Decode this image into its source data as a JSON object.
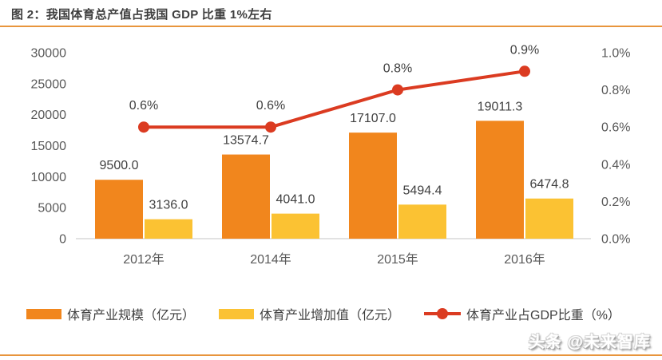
{
  "figure": {
    "title": "图 2：我国体育总产值占我国 GDP 比重 1%左右",
    "watermark": "头条 @未来智库",
    "accent_color": "#e8953c"
  },
  "chart_data": {
    "type": "bar",
    "subtype": "combo-bar-line",
    "title": "图 2：我国体育总产值占我国 GDP 比重 1%左右",
    "categories": [
      "2012年",
      "2014年",
      "2015年",
      "2016年"
    ],
    "series": [
      {
        "name": "体育产业规模（亿元）",
        "type": "bar",
        "axis": "left",
        "color": "#f1861d",
        "values": [
          9500.0,
          13574.7,
          17107.0,
          19011.3
        ],
        "labels": [
          "9500.0",
          "13574.7",
          "17107.0",
          "19011.3"
        ]
      },
      {
        "name": "体育产业增加值（亿元）",
        "type": "bar",
        "axis": "left",
        "color": "#fbc233",
        "values": [
          3136.0,
          4041.0,
          5494.4,
          6474.8
        ],
        "labels": [
          "3136.0",
          "4041.0",
          "5494.4",
          "6474.8"
        ]
      },
      {
        "name": "体育产业占GDP比重（%）",
        "type": "line",
        "axis": "right",
        "color": "#db3b21",
        "values": [
          0.6,
          0.6,
          0.8,
          0.9
        ],
        "labels": [
          "0.6%",
          "0.6%",
          "0.8%",
          "0.9%"
        ]
      }
    ],
    "left_axis": {
      "min": 0,
      "max": 30000,
      "step": 5000,
      "tick_labels": [
        "0",
        "5000",
        "10000",
        "15000",
        "20000",
        "25000",
        "30000"
      ]
    },
    "right_axis": {
      "min": 0,
      "max": 1.0,
      "step": 0.2,
      "tick_labels": [
        "0.0%",
        "0.2%",
        "0.4%",
        "0.6%",
        "0.8%",
        "1.0%"
      ]
    },
    "grid": false,
    "legend_position": "bottom",
    "text_color": "#595959",
    "label_color": "#404040",
    "baseline_color": "#d9d9d9"
  }
}
